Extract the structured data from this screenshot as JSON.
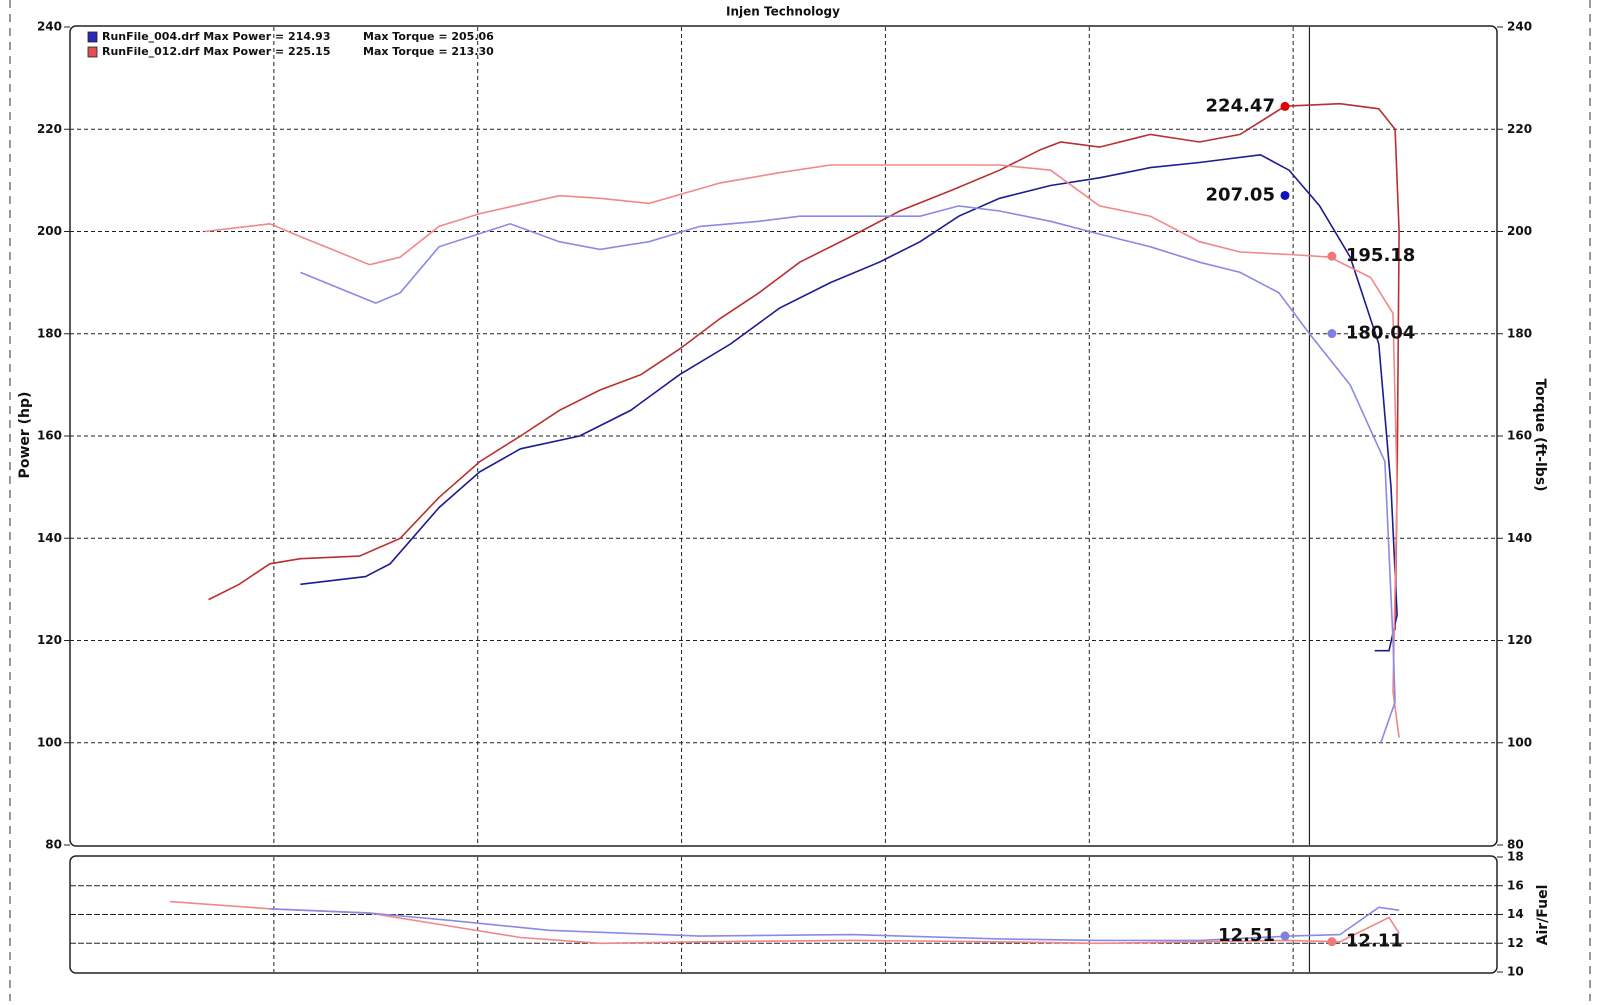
{
  "chart_data": [
    {
      "type": "line",
      "title": "Injen Technology",
      "y_label": "Power (hp)",
      "y2_label": "Torque (ft-lbs)",
      "xlim": [
        0,
        7
      ],
      "xticks": [
        1,
        2,
        3,
        4,
        5,
        6
      ],
      "ylim": [
        80,
        240
      ],
      "yticks": [
        80,
        100,
        120,
        140,
        160,
        180,
        200,
        220,
        240
      ],
      "y2lim": [
        80,
        240
      ],
      "y2ticks": [
        80,
        100,
        120,
        140,
        160,
        180,
        200,
        220,
        240
      ],
      "grid": true,
      "cursor_x": 6.08,
      "legend": [
        {
          "text": "RunFile_004.drf Max Power = 214.93",
          "text2": "Max Torque = 205.06",
          "color": "#2a2ab8"
        },
        {
          "text": "RunFile_012.drf Max Power = 225.15",
          "text2": "Max Torque = 213.30",
          "color": "#e05050"
        }
      ],
      "series": [
        {
          "color": "#b83030",
          "axis": "y",
          "x": [
            0.68,
            0.83,
            0.98,
            1.13,
            1.42,
            1.62,
            1.81,
            2.01,
            2.21,
            2.4,
            2.6,
            2.8,
            2.99,
            3.19,
            3.38,
            3.58,
            3.83,
            4.07,
            4.32,
            4.56,
            4.76,
            4.86,
            5.05,
            5.3,
            5.54,
            5.74,
            5.96,
            6.23,
            6.42,
            6.5,
            6.52,
            6.51,
            6.5
          ],
          "values": [
            128,
            131,
            135,
            136,
            136.5,
            140,
            148,
            155,
            160,
            165,
            169,
            172,
            177,
            183,
            188,
            194,
            199,
            204,
            208,
            212,
            216,
            217.5,
            216.5,
            219,
            217.5,
            219,
            224.5,
            225,
            224,
            220,
            200,
            150,
            122
          ]
        },
        {
          "color": "#1c1c90",
          "axis": "y",
          "x": [
            1.13,
            1.45,
            1.57,
            1.81,
            2.01,
            2.21,
            2.5,
            2.75,
            2.99,
            3.24,
            3.48,
            3.73,
            3.97,
            4.17,
            4.36,
            4.56,
            4.81,
            5.05,
            5.3,
            5.54,
            5.84,
            5.98,
            6.13,
            6.28,
            6.42,
            6.48,
            6.51,
            6.47,
            6.4
          ],
          "values": [
            131,
            132.5,
            135,
            146,
            153,
            157.5,
            160,
            165,
            172,
            178,
            185,
            190,
            194,
            198,
            203,
            206.5,
            209,
            210.5,
            212.5,
            213.5,
            215,
            212,
            205,
            195,
            178,
            150,
            125,
            118,
            118
          ]
        },
        {
          "color": "#f08888",
          "axis": "y2",
          "x": [
            0.66,
            0.98,
            1.13,
            1.47,
            1.62,
            1.81,
            2.01,
            2.4,
            2.6,
            2.84,
            3.19,
            3.48,
            3.73,
            4.07,
            4.56,
            4.81,
            5.05,
            5.3,
            5.54,
            5.74,
            5.98,
            6.18,
            6.38,
            6.49,
            6.51,
            6.49,
            6.52
          ],
          "values": [
            200,
            201.5,
            199,
            193.5,
            195,
            201,
            203.5,
            207,
            206.5,
            205.5,
            209.5,
            211.5,
            213,
            213,
            213,
            212,
            205,
            203,
            198,
            196,
            195.5,
            195,
            191,
            184,
            150,
            110,
            101
          ]
        },
        {
          "color": "#8a8ae6",
          "axis": "y2",
          "x": [
            1.13,
            1.5,
            1.62,
            1.81,
            2.16,
            2.4,
            2.6,
            2.84,
            3.09,
            3.38,
            3.58,
            3.97,
            4.17,
            4.36,
            4.56,
            4.81,
            5.05,
            5.3,
            5.54,
            5.74,
            5.93,
            6.08,
            6.28,
            6.45,
            6.49,
            6.5,
            6.43
          ],
          "values": [
            192,
            186,
            188,
            197,
            201.5,
            198,
            196.5,
            198,
            201,
            202,
            203,
            203,
            203,
            205,
            204,
            202,
            199.5,
            197,
            194,
            192,
            188,
            180,
            170,
            155,
            120,
            108,
            100
          ]
        }
      ],
      "markers": [
        {
          "x": 5.96,
          "value": 224.47,
          "color": "#e00000",
          "axis": "y"
        },
        {
          "x": 5.96,
          "value": 207.05,
          "color": "#1010c0",
          "axis": "y"
        },
        {
          "x": 6.19,
          "value": 195.18,
          "color": "#f07878",
          "axis": "y2"
        },
        {
          "x": 6.19,
          "value": 180.04,
          "color": "#8080e0",
          "axis": "y2"
        }
      ]
    },
    {
      "type": "line",
      "y2_label": "Air/Fuel",
      "xlim": [
        0,
        7
      ],
      "xticks": [
        1,
        2,
        3,
        4,
        5,
        6
      ],
      "y2lim": [
        10,
        18
      ],
      "y2ticks": [
        10,
        12,
        14,
        16,
        18
      ],
      "grid": true,
      "cursor_x": 6.08,
      "series": [
        {
          "color": "#f08888",
          "axis": "y2",
          "x": [
            0.49,
            0.98,
            1.47,
            1.86,
            2.21,
            2.6,
            3.09,
            3.83,
            4.56,
            5.05,
            5.54,
            5.98,
            6.23,
            6.47,
            6.52
          ],
          "values": [
            14.9,
            14.4,
            14.1,
            13.2,
            12.4,
            12.0,
            12.1,
            12.2,
            12.1,
            12.0,
            12.1,
            12.2,
            12.1,
            13.8,
            12.7
          ]
        },
        {
          "color": "#8a8ae6",
          "axis": "y2",
          "x": [
            0.98,
            1.47,
            1.86,
            2.35,
            3.09,
            3.83,
            4.56,
            5.05,
            5.54,
            5.98,
            6.23,
            6.42,
            6.52
          ],
          "values": [
            14.4,
            14.1,
            13.6,
            12.9,
            12.5,
            12.6,
            12.3,
            12.2,
            12.2,
            12.5,
            12.6,
            14.5,
            14.3
          ]
        }
      ],
      "markers": [
        {
          "x": 5.96,
          "value": 12.51,
          "color": "#8080e0",
          "axis": "y2"
        },
        {
          "x": 6.19,
          "value": 12.11,
          "color": "#f07878",
          "axis": "y2"
        }
      ]
    }
  ]
}
